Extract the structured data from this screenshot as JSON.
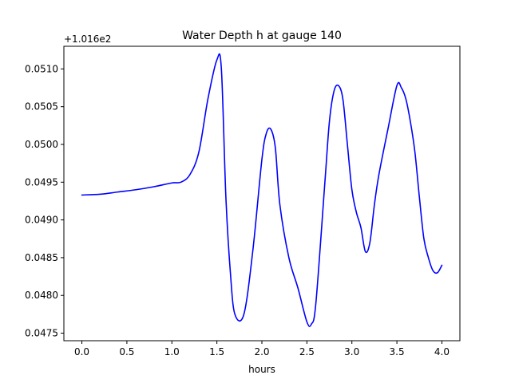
{
  "chart_data": {
    "type": "line",
    "title": "Water Depth h at gauge 140",
    "xlabel": "hours",
    "ylabel": "",
    "y_offset_label": "+1.016e2",
    "xlim": [
      -0.2,
      4.2
    ],
    "ylim": [
      0.0474,
      0.0513
    ],
    "x_ticks": [
      0.0,
      0.5,
      1.0,
      1.5,
      2.0,
      2.5,
      3.0,
      3.5,
      4.0
    ],
    "x_tick_labels": [
      "0.0",
      "0.5",
      "1.0",
      "1.5",
      "2.0",
      "2.5",
      "3.0",
      "3.5",
      "4.0"
    ],
    "y_ticks": [
      0.0475,
      0.048,
      0.0485,
      0.049,
      0.0495,
      0.05,
      0.0505,
      0.051
    ],
    "y_tick_labels": [
      "0.0475",
      "0.0480",
      "0.0485",
      "0.0490",
      "0.0495",
      "0.0500",
      "0.0505",
      "0.0510"
    ],
    "grid": false,
    "series": [
      {
        "color": "#0000ff",
        "x": [
          0.0,
          0.2,
          0.4,
          0.6,
          0.8,
          1.0,
          1.1,
          1.2,
          1.3,
          1.4,
          1.5,
          1.55,
          1.6,
          1.65,
          1.7,
          1.8,
          1.9,
          2.0,
          2.05,
          2.1,
          2.15,
          2.2,
          2.3,
          2.4,
          2.5,
          2.55,
          2.6,
          2.7,
          2.75,
          2.8,
          2.85,
          2.9,
          2.95,
          3.0,
          3.05,
          3.1,
          3.15,
          3.2,
          3.25,
          3.3,
          3.4,
          3.5,
          3.55,
          3.6,
          3.65,
          3.7,
          3.75,
          3.8,
          3.85,
          3.9,
          3.95,
          4.0
        ],
        "y": [
          0.04933,
          0.04934,
          0.04937,
          0.0494,
          0.04944,
          0.04949,
          0.0495,
          0.0496,
          0.0499,
          0.0506,
          0.05112,
          0.051,
          0.0493,
          0.0483,
          0.04775,
          0.04775,
          0.0486,
          0.0498,
          0.05015,
          0.0502,
          0.04995,
          0.0492,
          0.0485,
          0.0481,
          0.04765,
          0.04762,
          0.0479,
          0.0495,
          0.0503,
          0.0507,
          0.05078,
          0.0506,
          0.05,
          0.0494,
          0.0491,
          0.0489,
          0.04858,
          0.0487,
          0.0492,
          0.0496,
          0.0502,
          0.05078,
          0.05075,
          0.0506,
          0.0503,
          0.0499,
          0.0493,
          0.04875,
          0.0485,
          0.04833,
          0.0483,
          0.0484
        ]
      }
    ]
  }
}
